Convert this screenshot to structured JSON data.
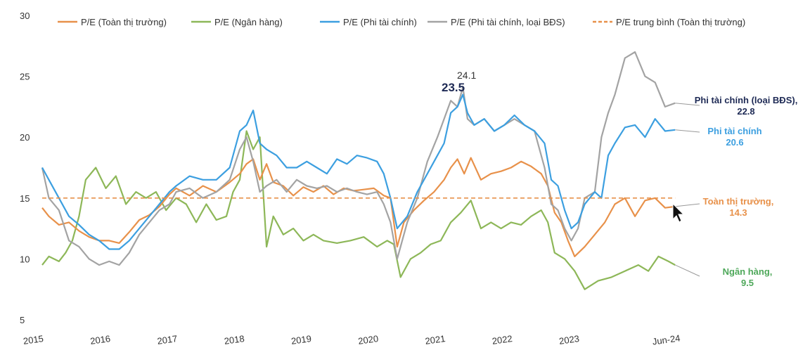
{
  "chart_data": {
    "type": "line",
    "title": "",
    "xlabel": "",
    "ylabel": "",
    "ylim": [
      5,
      30
    ],
    "yticks": [
      5,
      10,
      15,
      20,
      25,
      30
    ],
    "xticks": [
      "2015",
      "2016",
      "2017",
      "2018",
      "2019",
      "2020",
      "2021",
      "2022",
      "2023",
      "Jun-24"
    ],
    "xrange": [
      2015.0,
      2024.5
    ],
    "series": [
      {
        "name": "P/E (Toàn thị trường)",
        "color": "#E8914A",
        "x": [
          2015.0,
          2015.1,
          2015.25,
          2015.4,
          2015.55,
          2015.7,
          2015.85,
          2016.0,
          2016.15,
          2016.3,
          2016.45,
          2016.6,
          2016.75,
          2016.9,
          2017.0,
          2017.2,
          2017.4,
          2017.6,
          2017.8,
          2017.95,
          2018.05,
          2018.15,
          2018.25,
          2018.35,
          2018.45,
          2018.6,
          2018.75,
          2018.9,
          2019.05,
          2019.2,
          2019.35,
          2019.5,
          2019.65,
          2019.8,
          2019.95,
          2020.1,
          2020.2,
          2020.3,
          2020.4,
          2020.55,
          2020.7,
          2020.85,
          2021.0,
          2021.1,
          2021.2,
          2021.3,
          2021.4,
          2021.55,
          2021.7,
          2021.85,
          2022.0,
          2022.15,
          2022.3,
          2022.45,
          2022.55,
          2022.65,
          2022.75,
          2022.85,
          2022.95,
          2023.1,
          2023.25,
          2023.4,
          2023.55,
          2023.7,
          2023.85,
          2024.0,
          2024.15,
          2024.3,
          2024.45
        ],
        "values": [
          14.2,
          13.5,
          12.8,
          13.0,
          12.3,
          11.8,
          11.5,
          11.5,
          11.3,
          12.2,
          13.2,
          13.6,
          14.3,
          15.3,
          15.8,
          15.2,
          16.0,
          15.5,
          16.3,
          17.0,
          17.8,
          18.2,
          16.5,
          17.8,
          16.3,
          16.0,
          15.2,
          15.9,
          15.5,
          16.0,
          15.3,
          15.8,
          15.6,
          15.7,
          15.8,
          15.2,
          15.0,
          11.0,
          13.0,
          14.0,
          14.8,
          15.5,
          16.5,
          17.5,
          18.2,
          17.0,
          18.3,
          16.5,
          17.0,
          17.2,
          17.5,
          18.0,
          17.6,
          17.0,
          16.0,
          13.8,
          13.0,
          11.5,
          10.2,
          11.0,
          12.0,
          13.0,
          14.5,
          15.0,
          13.5,
          14.8,
          15.0,
          14.2,
          14.3
        ]
      },
      {
        "name": "P/E (Ngân hàng)",
        "color": "#8DB758",
        "x": [
          2015.0,
          2015.1,
          2015.25,
          2015.35,
          2015.45,
          2015.55,
          2015.65,
          2015.8,
          2015.95,
          2016.1,
          2016.25,
          2016.4,
          2016.55,
          2016.7,
          2016.85,
          2017.0,
          2017.15,
          2017.3,
          2017.45,
          2017.6,
          2017.75,
          2017.85,
          2017.95,
          2018.05,
          2018.15,
          2018.25,
          2018.35,
          2018.45,
          2018.6,
          2018.75,
          2018.9,
          2019.05,
          2019.2,
          2019.4,
          2019.6,
          2019.8,
          2020.0,
          2020.15,
          2020.25,
          2020.35,
          2020.5,
          2020.65,
          2020.8,
          2020.95,
          2021.1,
          2021.25,
          2021.4,
          2021.55,
          2021.7,
          2021.85,
          2022.0,
          2022.15,
          2022.3,
          2022.45,
          2022.55,
          2022.65,
          2022.8,
          2022.95,
          2023.1,
          2023.3,
          2023.5,
          2023.7,
          2023.9,
          2024.05,
          2024.2,
          2024.35,
          2024.45
        ],
        "values": [
          9.5,
          10.2,
          9.8,
          10.5,
          11.5,
          13.5,
          16.5,
          17.5,
          15.8,
          16.8,
          14.5,
          15.5,
          15.0,
          15.5,
          14.0,
          15.0,
          14.5,
          13.0,
          14.5,
          13.2,
          13.5,
          15.5,
          16.5,
          20.5,
          19.0,
          20.0,
          11.0,
          13.5,
          12.0,
          12.5,
          11.5,
          12.0,
          11.5,
          11.3,
          11.5,
          11.8,
          11.0,
          11.5,
          11.2,
          8.5,
          10.0,
          10.5,
          11.2,
          11.5,
          13.0,
          13.8,
          14.8,
          12.5,
          13.0,
          12.5,
          13.0,
          12.8,
          13.5,
          14.0,
          13.0,
          10.5,
          10.0,
          9.0,
          7.5,
          8.2,
          8.5,
          9.0,
          9.5,
          9.0,
          10.2,
          9.8,
          9.5
        ]
      },
      {
        "name": "P/E (Phi tài chính)",
        "color": "#3C9FE0",
        "x": [
          2015.0,
          2015.1,
          2015.25,
          2015.4,
          2015.55,
          2015.7,
          2015.85,
          2016.0,
          2016.15,
          2016.3,
          2016.45,
          2016.6,
          2016.75,
          2016.9,
          2017.0,
          2017.2,
          2017.4,
          2017.6,
          2017.8,
          2017.95,
          2018.05,
          2018.15,
          2018.25,
          2018.35,
          2018.5,
          2018.65,
          2018.8,
          2018.95,
          2019.1,
          2019.25,
          2019.4,
          2019.55,
          2019.7,
          2019.85,
          2020.0,
          2020.1,
          2020.2,
          2020.3,
          2020.45,
          2020.6,
          2020.75,
          2020.9,
          2021.0,
          2021.1,
          2021.2,
          2021.28,
          2021.35,
          2021.45,
          2021.6,
          2021.75,
          2021.9,
          2022.05,
          2022.2,
          2022.35,
          2022.5,
          2022.6,
          2022.7,
          2022.8,
          2022.9,
          2023.0,
          2023.1,
          2023.25,
          2023.35,
          2023.45,
          2023.55,
          2023.7,
          2023.85,
          2024.0,
          2024.15,
          2024.3,
          2024.45
        ],
        "values": [
          17.5,
          16.5,
          15.0,
          13.5,
          12.8,
          12.0,
          11.5,
          10.8,
          10.8,
          11.5,
          12.5,
          13.5,
          14.5,
          15.5,
          16.0,
          16.8,
          16.5,
          16.5,
          17.5,
          20.5,
          21.0,
          22.2,
          19.5,
          19.0,
          18.5,
          17.5,
          17.5,
          18.0,
          17.5,
          17.0,
          18.2,
          17.8,
          18.5,
          18.3,
          18.0,
          17.0,
          15.0,
          12.5,
          13.5,
          15.5,
          17.0,
          18.5,
          19.5,
          22.0,
          22.5,
          23.5,
          22.0,
          21.0,
          21.5,
          20.5,
          21.0,
          21.8,
          21.0,
          20.5,
          19.5,
          16.5,
          16.0,
          14.0,
          12.5,
          13.0,
          14.5,
          15.5,
          15.0,
          18.5,
          19.5,
          20.8,
          21.0,
          20.0,
          21.5,
          20.5,
          20.6
        ]
      },
      {
        "name": "P/E (Phi tài chính, loại BĐS)",
        "color": "#A3A3A3",
        "x": [
          2015.0,
          2015.1,
          2015.25,
          2015.4,
          2015.55,
          2015.7,
          2015.85,
          2016.0,
          2016.15,
          2016.3,
          2016.45,
          2016.6,
          2016.75,
          2016.9,
          2017.0,
          2017.2,
          2017.4,
          2017.6,
          2017.8,
          2017.95,
          2018.05,
          2018.15,
          2018.25,
          2018.35,
          2018.5,
          2018.65,
          2018.8,
          2018.95,
          2019.1,
          2019.25,
          2019.4,
          2019.55,
          2019.7,
          2019.85,
          2020.0,
          2020.1,
          2020.2,
          2020.3,
          2020.45,
          2020.6,
          2020.75,
          2020.9,
          2021.0,
          2021.1,
          2021.2,
          2021.28,
          2021.35,
          2021.45,
          2021.6,
          2021.75,
          2021.9,
          2022.05,
          2022.2,
          2022.35,
          2022.5,
          2022.6,
          2022.7,
          2022.8,
          2022.9,
          2023.0,
          2023.1,
          2023.25,
          2023.35,
          2023.45,
          2023.55,
          2023.7,
          2023.85,
          2024.0,
          2024.15,
          2024.3,
          2024.45
        ],
        "values": [
          17.5,
          15.0,
          14.0,
          11.5,
          11.0,
          10.0,
          9.5,
          9.8,
          9.5,
          10.5,
          12.0,
          13.0,
          14.0,
          14.5,
          15.5,
          15.8,
          15.0,
          15.5,
          16.5,
          19.0,
          20.0,
          18.0,
          15.5,
          16.0,
          16.5,
          15.5,
          16.5,
          16.0,
          15.8,
          16.0,
          15.5,
          15.8,
          15.5,
          15.3,
          15.5,
          14.5,
          13.0,
          10.0,
          13.0,
          15.0,
          18.0,
          20.0,
          21.5,
          23.0,
          22.5,
          24.1,
          21.5,
          21.0,
          21.5,
          20.5,
          21.0,
          21.5,
          21.0,
          20.5,
          17.5,
          14.5,
          14.0,
          12.5,
          11.5,
          12.5,
          15.0,
          15.5,
          20.0,
          22.0,
          23.5,
          26.5,
          27.0,
          25.0,
          24.5,
          22.5,
          22.8
        ]
      },
      {
        "name": "P/E trung bình (Toàn thị trường)",
        "color": "#E8914A",
        "dashed": true,
        "x": [
          2015.0,
          2024.45
        ],
        "values": [
          15.0,
          15.0
        ]
      }
    ],
    "annotations": [
      {
        "text": "24.1",
        "x": 2021.3,
        "y": 24.1,
        "series": "P/E (Phi tài chính, loại BĐS)"
      },
      {
        "text": "23.5",
        "x": 2021.2,
        "y": 23.5,
        "series": "P/E (Phi tài chính)"
      }
    ],
    "end_labels": [
      {
        "line1": "Phi tài chính (loại BĐS),",
        "line2": "22.8",
        "color": "#1E2A55",
        "value": 22.8
      },
      {
        "line1": "Phi tài chính",
        "line2": "20.6",
        "color": "#3C9FE0",
        "value": 20.6
      },
      {
        "line1": "Toàn thị trường,",
        "line2": "14.3",
        "color": "#E8914A",
        "value": 14.3
      },
      {
        "line1": "Ngân hàng,",
        "line2": "9.5",
        "color": "#4EA85A",
        "value": 9.5
      }
    ],
    "legend_position": "top"
  }
}
